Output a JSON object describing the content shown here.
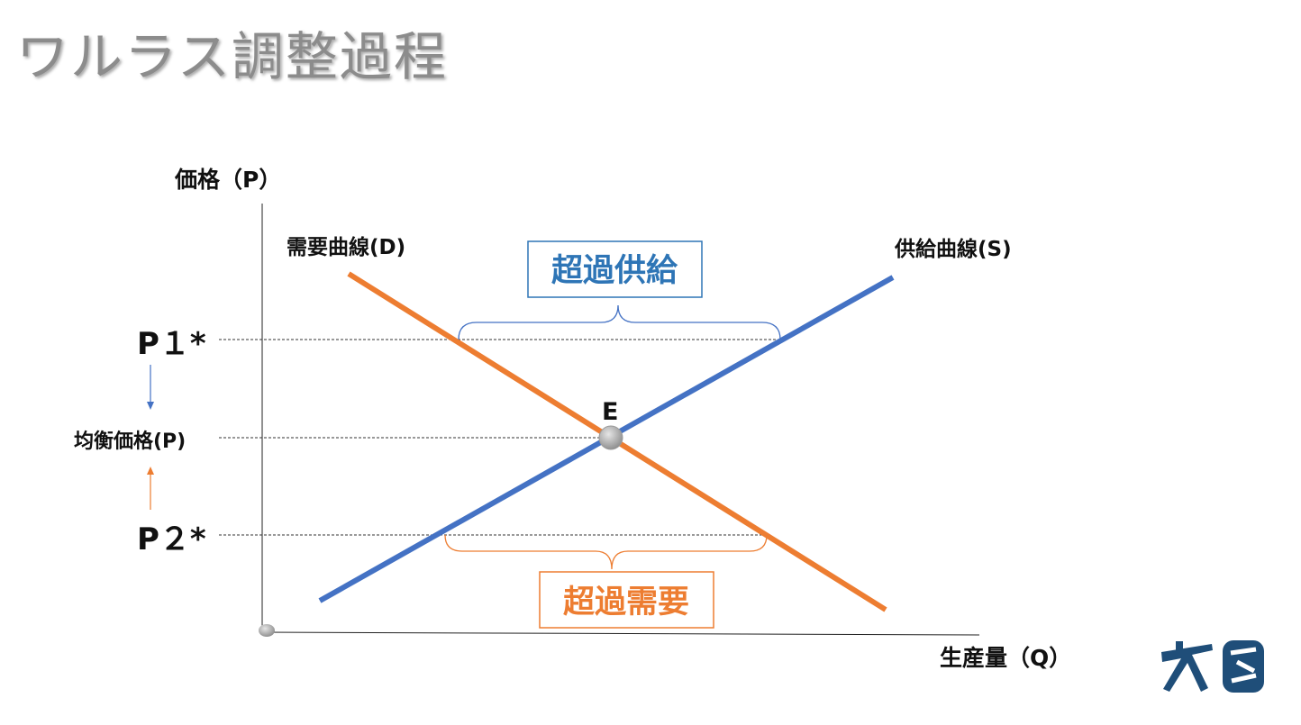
{
  "slide": {
    "title": "ワルラス調整過程"
  },
  "diagram": {
    "y_axis_label": "価格（P）",
    "x_axis_label": "生産量（Q）",
    "demand_label": "需要曲線(D)",
    "supply_label": "供給曲線(S)",
    "equilibrium_label": "E",
    "price_levels": {
      "p1": "P１*",
      "equilibrium": "均衡価格(P)",
      "p2": "P２*"
    },
    "excess_supply_label": "超過供給",
    "excess_demand_label": "超過需要"
  },
  "colors": {
    "demand": "#ED7D31",
    "supply": "#4472C4",
    "excess_supply": "#2E75B6",
    "excess_demand": "#ED7D31",
    "title": "#8C8C8C"
  },
  "icons": {
    "logo": "brand-logo-icon",
    "arrow_down": "down-arrow-icon",
    "arrow_up": "up-arrow-icon",
    "equilibrium_point": "equilibrium-point-icon",
    "origin": "origin-point-icon"
  }
}
